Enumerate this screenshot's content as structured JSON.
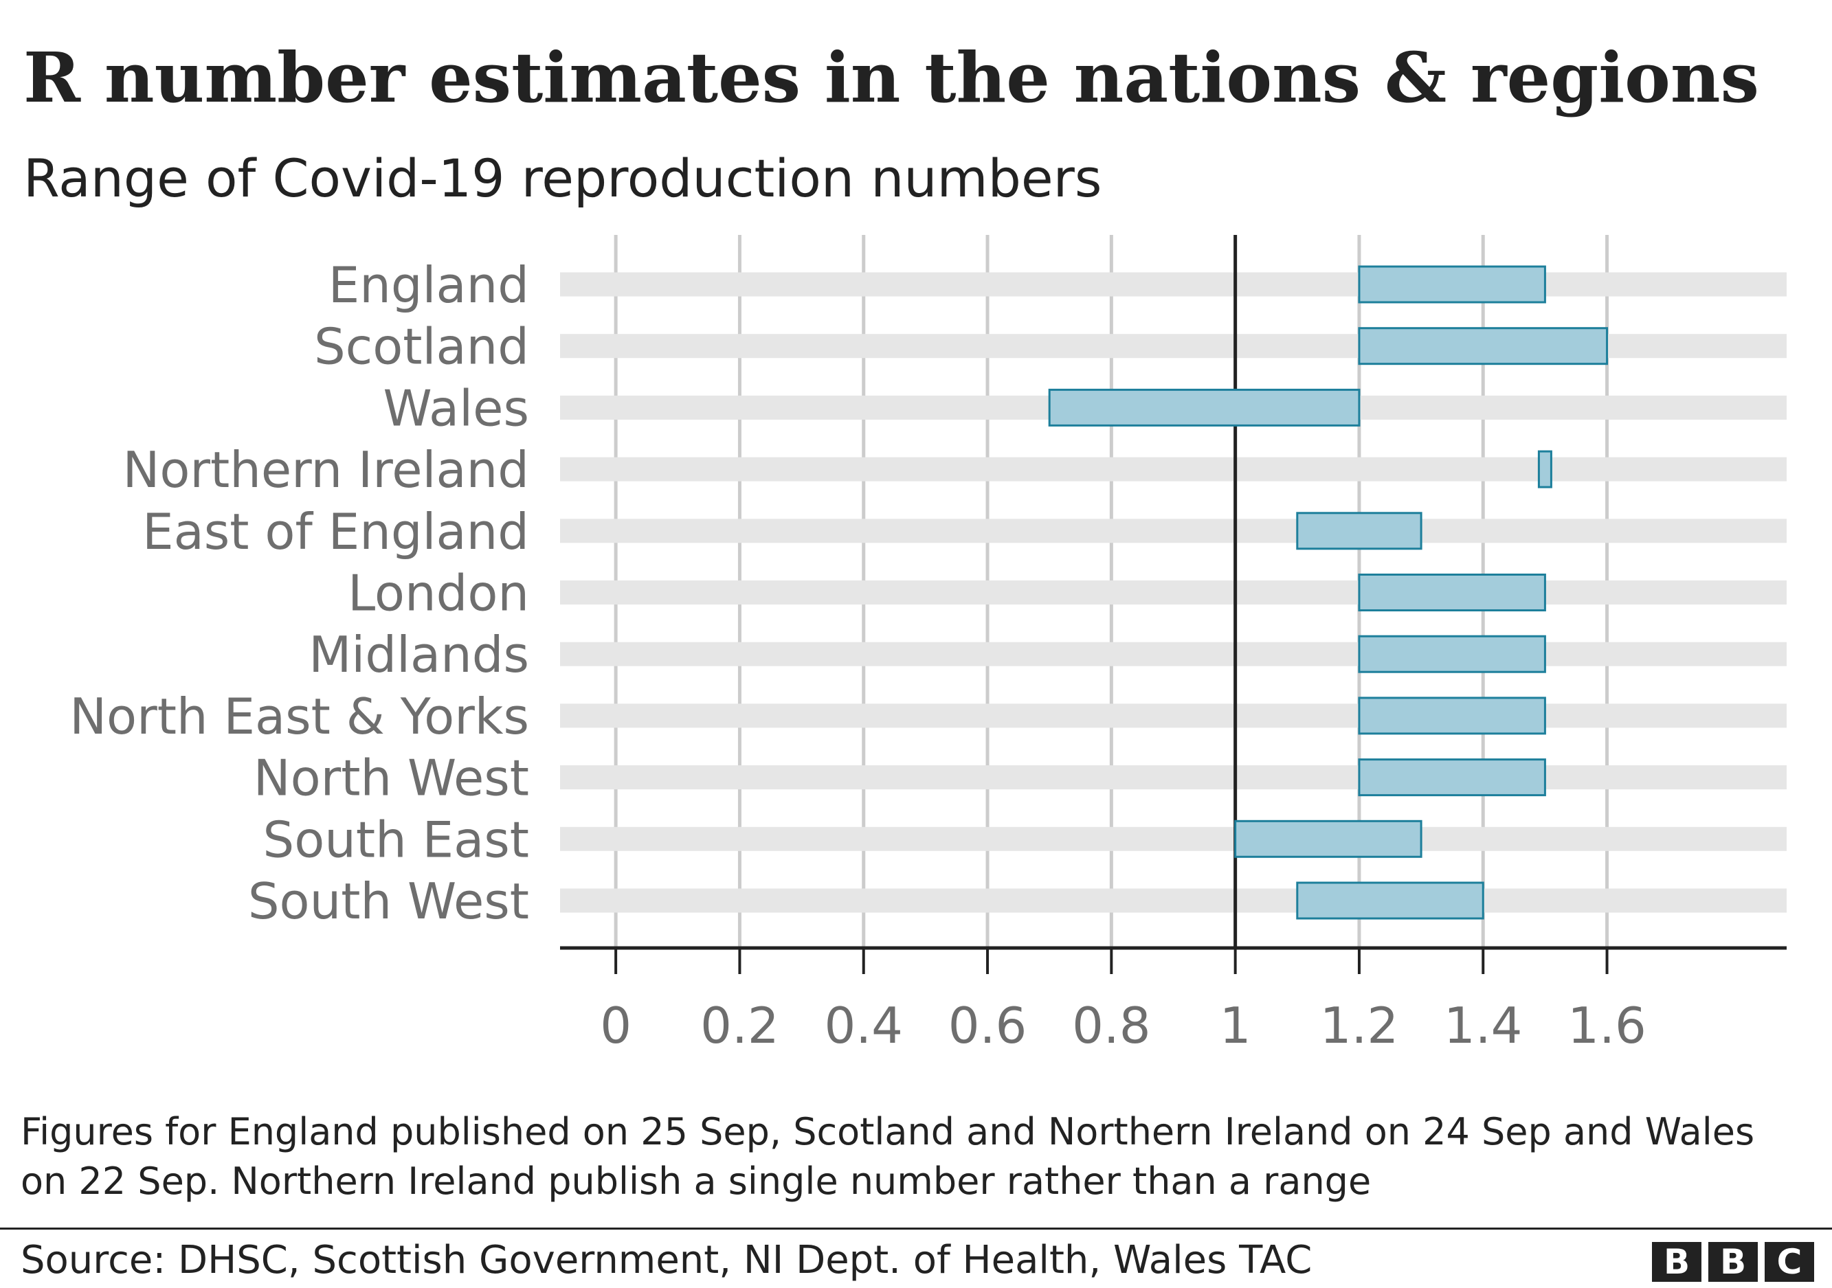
{
  "chart_data": {
    "type": "bar",
    "title": "R number estimates in the nations & regions",
    "subtitle": "Range of Covid-19 reproduction numbers",
    "orientation": "horizontal",
    "bar_style": "range",
    "categories": [
      "England",
      "Scotland",
      "Wales",
      "Northern Ireland",
      "East of England",
      "London",
      "Midlands",
      "North East & Yorks",
      "North West",
      "South East",
      "South West"
    ],
    "ranges": [
      [
        1.2,
        1.5
      ],
      [
        1.2,
        1.6
      ],
      [
        0.7,
        1.2
      ],
      [
        1.5,
        1.5
      ],
      [
        1.1,
        1.3
      ],
      [
        1.2,
        1.5
      ],
      [
        1.2,
        1.5
      ],
      [
        1.2,
        1.5
      ],
      [
        1.2,
        1.5
      ],
      [
        1.0,
        1.3
      ],
      [
        1.1,
        1.4
      ]
    ],
    "xticks": [
      "0",
      "0.2",
      "0.4",
      "0.6",
      "0.8",
      "1",
      "1.2",
      "1.4",
      "1.6"
    ],
    "xlim": [
      -0.09,
      1.89
    ],
    "reference_line": 1,
    "grid": true,
    "colors": {
      "bar_fill": "#a3ccdb",
      "bar_stroke": "#1d7f9b",
      "row_band": "#e6e6e6",
      "grid": "#cccccc",
      "axis": "#222222",
      "label": "#6e6e6e"
    }
  },
  "note": "Figures for England published on 25 Sep, Scotland and Northern Ireland on 24 Sep and Wales on 22 Sep. Northern Ireland publish a single number rather than a range",
  "source": "Source: DHSC, Scottish Government, NI Dept. of Health, Wales TAC",
  "logo": {
    "letters": [
      "B",
      "B",
      "C"
    ]
  }
}
